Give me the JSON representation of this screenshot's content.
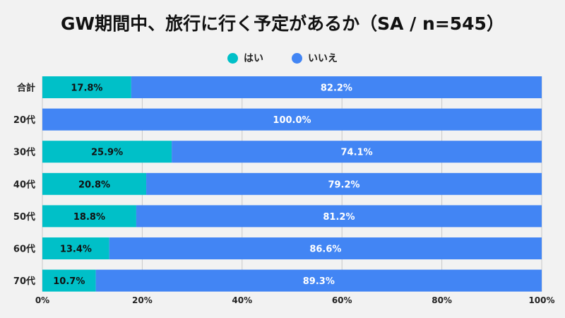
{
  "chart_data": {
    "type": "bar",
    "orientation": "horizontal",
    "stacked": true,
    "title": "GW期間中、旅行に行く予定があるか（SA / n=545）",
    "categories": [
      "合計",
      "20代",
      "30代",
      "40代",
      "50代",
      "60代",
      "70代"
    ],
    "series": [
      {
        "name": "はい",
        "color": "#00c0c8",
        "values": [
          17.8,
          0,
          25.9,
          20.8,
          18.8,
          13.4,
          10.7
        ]
      },
      {
        "name": "いいえ",
        "color": "#4285f4",
        "values": [
          82.2,
          100.0,
          74.1,
          79.2,
          81.2,
          86.6,
          89.3
        ]
      }
    ],
    "xlim": [
      0,
      100
    ],
    "xticks": [
      "0%",
      "20%",
      "40%",
      "60%",
      "80%",
      "100%"
    ],
    "grid": true,
    "legend": "top-center",
    "data_labels": true
  }
}
